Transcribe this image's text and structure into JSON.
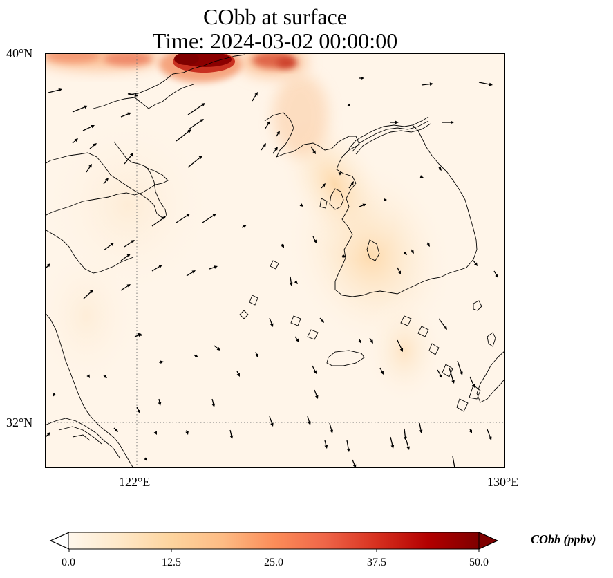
{
  "title_line1": "CObb at surface",
  "title_line2": "Time: 2024-03-02 00:00:00",
  "lat_labels": [
    "40°N",
    "32°N"
  ],
  "lon_labels": [
    "122°E",
    "130°E"
  ],
  "colorbar": {
    "label": "CObb (ppbv)",
    "ticks": [
      "0.0",
      "12.5",
      "25.0",
      "37.5",
      "50.0"
    ],
    "min": 0,
    "max": 50,
    "colormap_stops": [
      "#fff7ec",
      "#fee8c8",
      "#fdd49e",
      "#fdbb84",
      "#fc8d59",
      "#ef6548",
      "#d7301f",
      "#b30000",
      "#7f0000"
    ]
  },
  "chart_data": {
    "type": "heatmap",
    "variable": "CObb",
    "units": "ppbv",
    "lon_range": [
      120,
      130
    ],
    "lat_range": [
      31,
      40
    ],
    "gridlines": {
      "lon": [
        122
      ],
      "lat": [
        32
      ]
    },
    "hotspots": [
      {
        "lon": 121.0,
        "lat": 39.9,
        "value": 14
      },
      {
        "lon": 123.3,
        "lat": 39.9,
        "value": 50
      },
      {
        "lon": 125.0,
        "lat": 39.8,
        "value": 24
      },
      {
        "lon": 125.6,
        "lat": 38.8,
        "value": 9
      },
      {
        "lon": 126.0,
        "lat": 36.7,
        "value": 7
      },
      {
        "lon": 127.0,
        "lat": 35.2,
        "value": 4
      }
    ]
  }
}
